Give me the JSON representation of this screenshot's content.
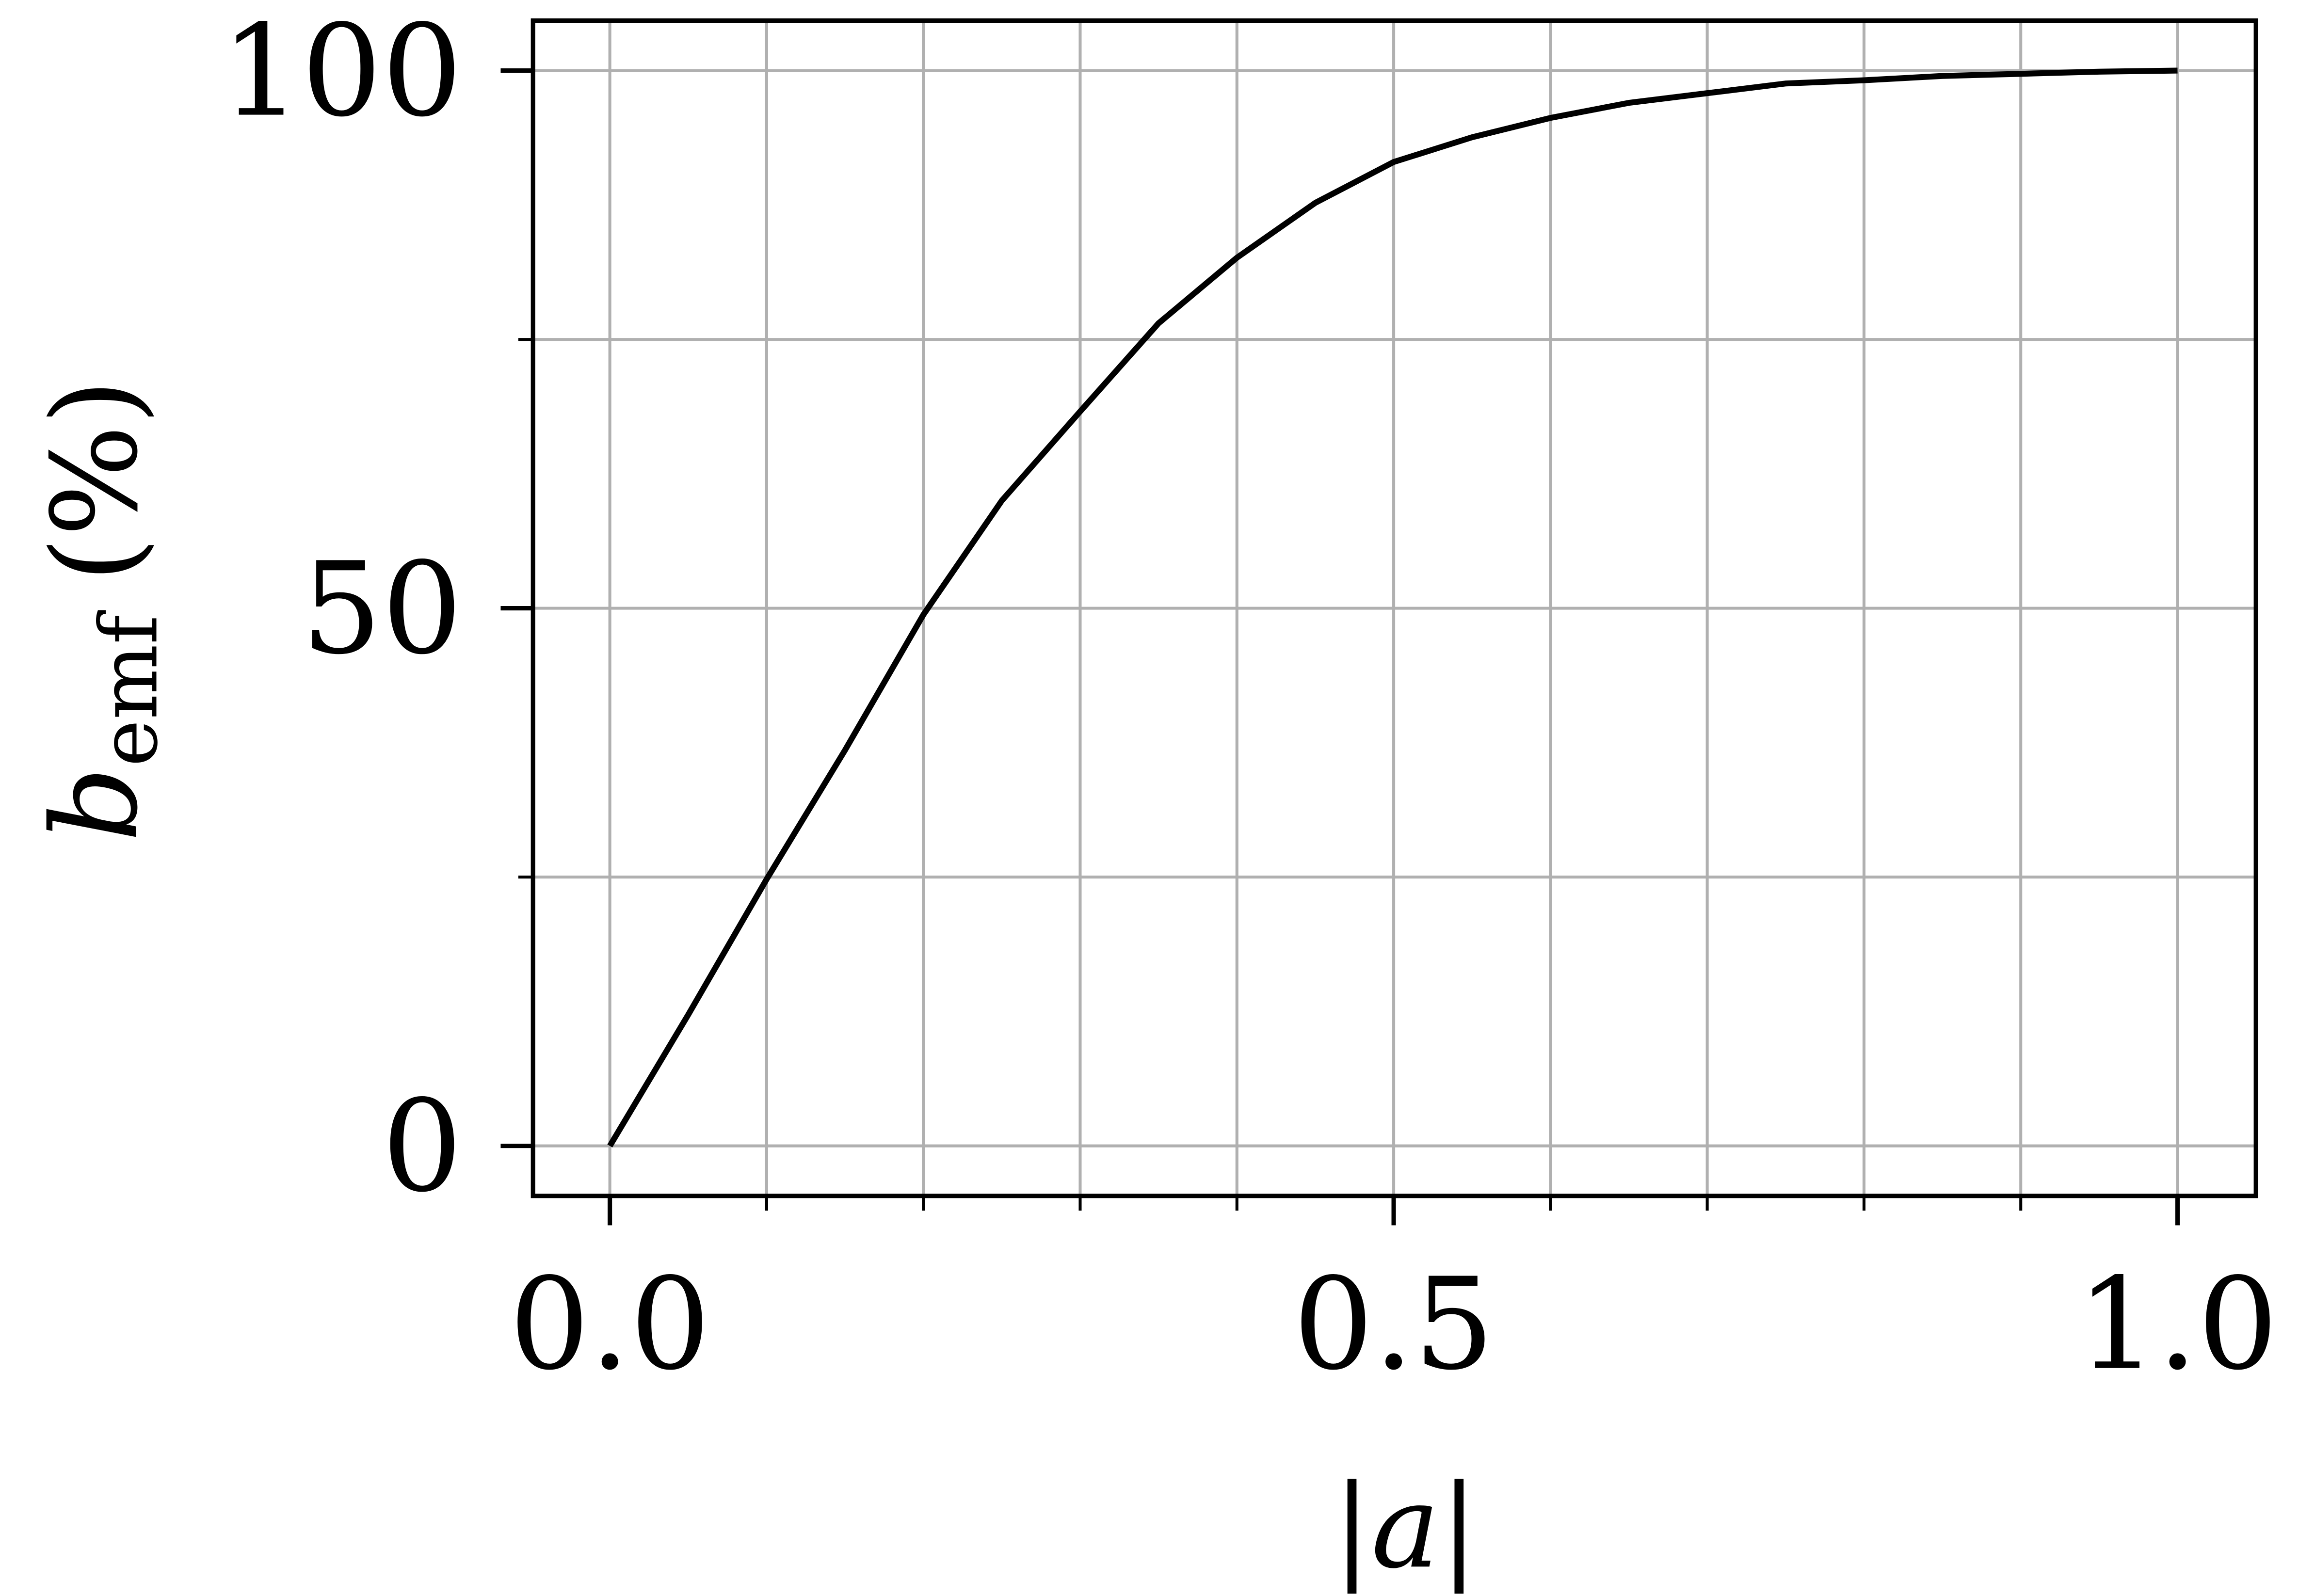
{
  "chart_data": {
    "type": "line",
    "xlabel": "|a|",
    "ylabel": {
      "symbol": "b",
      "subscript": "emf",
      "unit": "(%)"
    },
    "x": [
      0,
      0.05,
      0.1,
      0.15,
      0.2,
      0.25,
      0.3,
      0.35,
      0.4,
      0.45,
      0.5,
      0.55,
      0.6,
      0.65,
      0.7,
      0.75,
      0.8,
      0.85,
      0.9,
      0.95,
      1.0
    ],
    "series": [
      {
        "color": "#000000",
        "values": [
          0,
          12.2,
          24.8,
          36.8,
          49.4,
          60,
          68.3,
          76.5,
          82.6,
          87.7,
          91.5,
          93.8,
          95.6,
          97,
          97.9,
          98.8,
          99.1,
          99.5,
          99.7,
          99.9,
          100
        ]
      }
    ],
    "xlim": [
      -0.049,
      1.05
    ],
    "ylim": [
      -4.65,
      104.65
    ],
    "xticks": [
      {
        "value": 0,
        "label": "0.0"
      },
      0.5,
      {
        "value": 1,
        "label": "1.0"
      }
    ],
    "xminorticks": [
      0.1,
      0.2,
      0.3,
      0.4,
      0.6,
      0.7,
      0.8,
      0.9
    ],
    "yticks": [
      0,
      50,
      100
    ],
    "yminorticks": [
      25,
      75
    ],
    "grid": true
  }
}
